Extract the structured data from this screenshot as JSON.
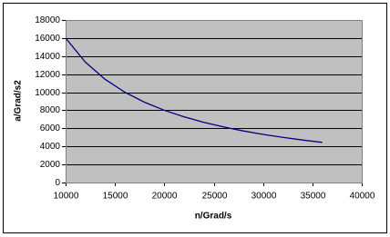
{
  "chart_data": {
    "type": "line",
    "x_label": "n/Grad/s",
    "y_label": "a/Grad/s2",
    "x": [
      10000,
      12000,
      14000,
      16000,
      18000,
      20000,
      22000,
      24000,
      26000,
      28000,
      30000,
      32000,
      34000,
      36000
    ],
    "series": [
      {
        "color": "#000080",
        "values": [
          16000,
          13333,
          11429,
          10000,
          8889,
          8000,
          7273,
          6667,
          6154,
          5714,
          5333,
          5000,
          4706,
          4444
        ]
      }
    ],
    "xlim": [
      10000,
      40000
    ],
    "xticks": [
      10000,
      15000,
      20000,
      25000,
      30000,
      35000,
      40000
    ],
    "ylim": [
      0,
      18000
    ],
    "yticks": [
      0,
      2000,
      4000,
      6000,
      8000,
      10000,
      12000,
      14000,
      16000,
      18000
    ],
    "grid": true,
    "plot_background": "#c0c0c0"
  }
}
